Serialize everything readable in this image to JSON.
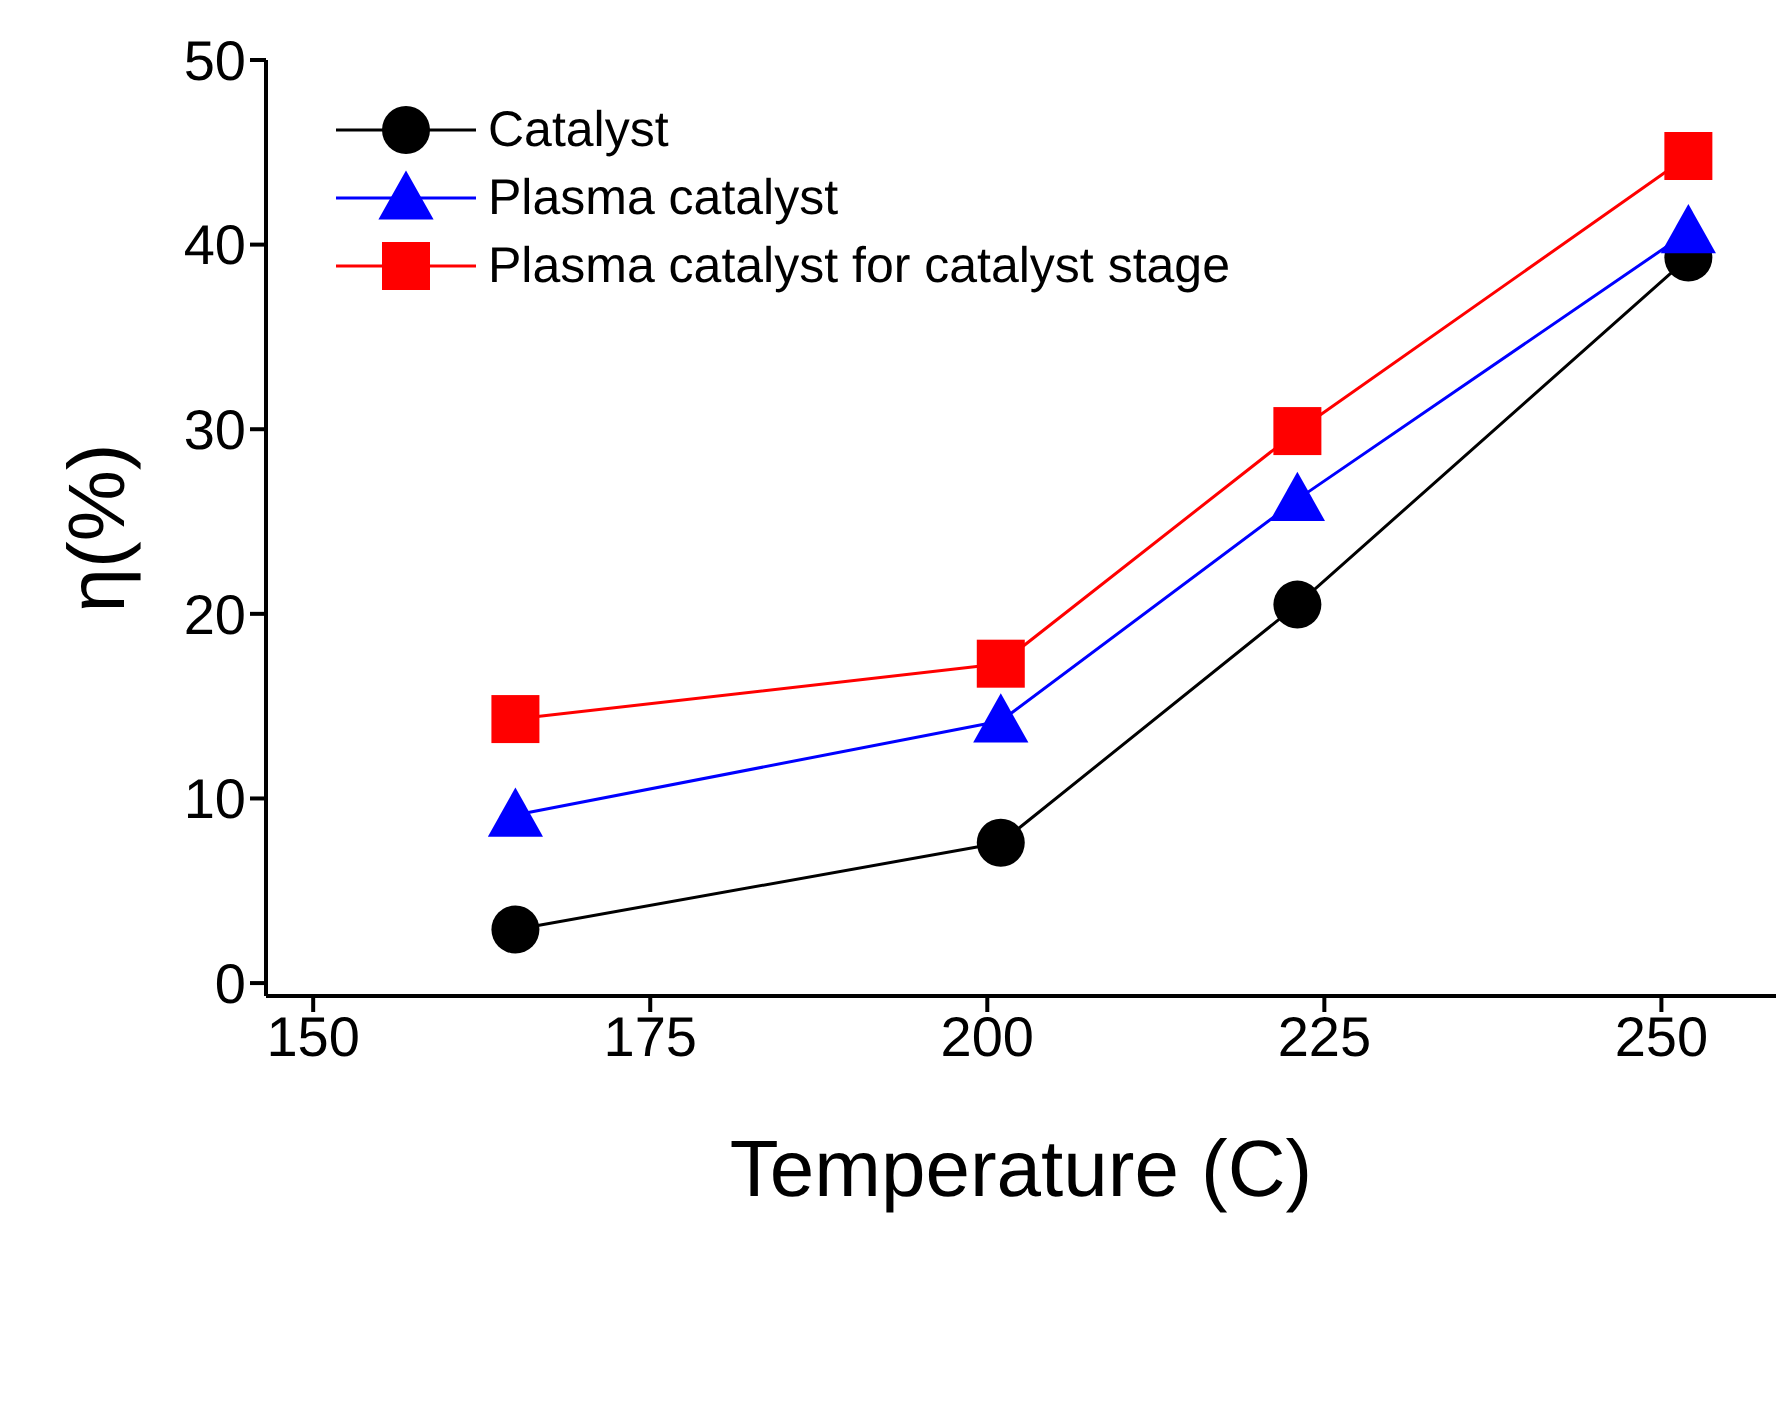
{
  "chart_data": {
    "type": "line",
    "xlabel": "Temperature (C)",
    "ylabel": "η(%)",
    "x": [
      165,
      201,
      223,
      252
    ],
    "xlim": [
      146.5,
      258.5
    ],
    "xticks": [
      150,
      175,
      200,
      225,
      250
    ],
    "ylim": [
      -0.7,
      50
    ],
    "yticks": [
      0,
      10,
      20,
      30,
      40,
      50
    ],
    "grid": false,
    "legend": "top left",
    "line_style": "solid",
    "series": [
      {
        "name": "Catalyst",
        "color": "#000000",
        "marker": "circle",
        "values": [
          2.9,
          7.6,
          20.5,
          39.3
        ]
      },
      {
        "name": "Plasma catalyst",
        "color": "#0000ff",
        "marker": "triangle",
        "values": [
          9.1,
          14.2,
          26.2,
          40.7
        ]
      },
      {
        "name": "Plasma catalyst for catalyst stage",
        "color": "#ff0000",
        "marker": "square",
        "values": [
          14.3,
          17.3,
          29.9,
          44.8
        ]
      }
    ]
  }
}
